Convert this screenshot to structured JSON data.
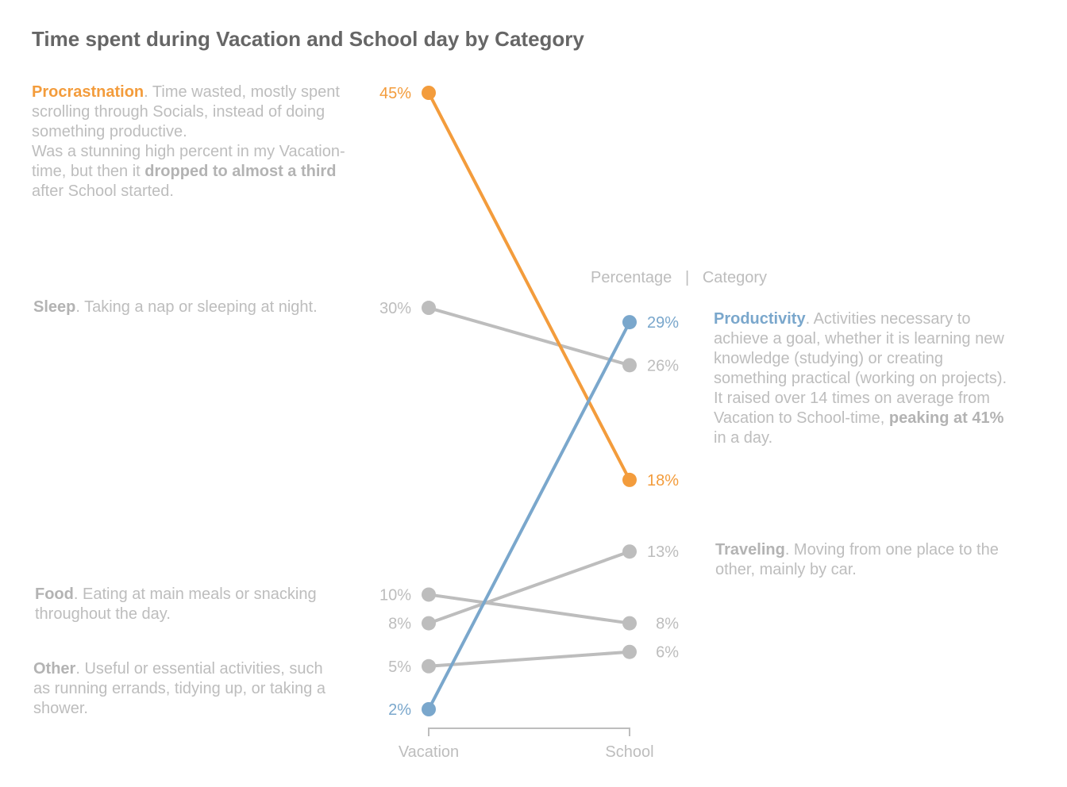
{
  "title": "Time spent during Vacation and School day by Category",
  "header": {
    "left": "Percentage",
    "sep": "|",
    "right": "Category"
  },
  "notes": {
    "procrastination": {
      "name": "Procrastnation",
      "p1": ". Time wasted, mostly spent scrolling through Socials, instead of doing something productive.",
      "p2a": "Was a stunning high percent in my Vacation-time, but then it ",
      "p2b": "dropped to almost a third",
      "p2c": " after School started."
    },
    "sleep": {
      "name": "Sleep",
      "text": ". Taking a nap or sleeping at night."
    },
    "food": {
      "name": "Food",
      "text": ". Eating at main meals or snacking throughout the day."
    },
    "other": {
      "name": "Other",
      "text": ". Useful or essential activities, such as running errands, tidying up, or taking a shower."
    },
    "productivity": {
      "name": "Productivity",
      "p1": ". Activities necessary to achieve a goal, whether it is learning new knowledge (studying) or creating something practical (working on projects).",
      "p2a": "It raised over 14 times on average from Vacation to School-time, ",
      "p2b": "peaking at 41%",
      "p2c": " in a day."
    },
    "traveling": {
      "name": "Traveling",
      "text": ". Moving from one place to the other, mainly by car."
    }
  },
  "chart_data": {
    "type": "line",
    "title": "Time spent during Vacation and School day by Category",
    "x": [
      "Vacation",
      "School"
    ],
    "ylabel": "",
    "series": [
      {
        "name": "Procrastnation",
        "values": [
          45,
          18
        ],
        "labels": [
          "45%",
          "18%"
        ],
        "color": "#f39c3c"
      },
      {
        "name": "Sleep",
        "values": [
          30,
          26
        ],
        "labels": [
          "30%",
          "26%"
        ],
        "color": "#bdbdbd"
      },
      {
        "name": "Food",
        "values": [
          10,
          8
        ],
        "labels": [
          "10%",
          "8%"
        ],
        "color": "#bdbdbd"
      },
      {
        "name": "Traveling",
        "values": [
          8,
          13
        ],
        "labels": [
          "8%",
          "13%"
        ],
        "color": "#bdbdbd"
      },
      {
        "name": "Other",
        "values": [
          5,
          6
        ],
        "labels": [
          "5%",
          "6%"
        ],
        "color": "#bdbdbd"
      },
      {
        "name": "Productivity",
        "values": [
          2,
          29
        ],
        "labels": [
          "2%",
          "29%"
        ],
        "color": "#7aa7cc"
      }
    ],
    "grid": false,
    "legend": "none"
  }
}
